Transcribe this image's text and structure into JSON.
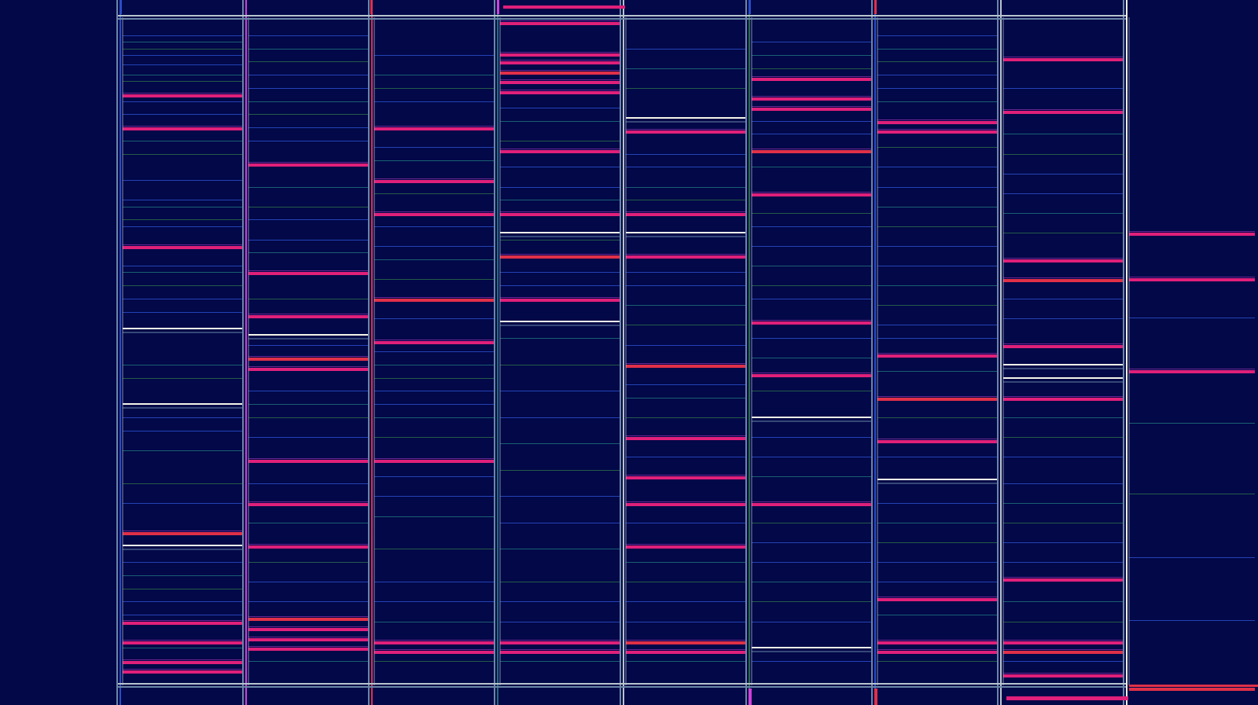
{
  "palette": {
    "background": "#020848",
    "frame": "#b8c4cc",
    "frame_dim": "#6b86a8",
    "accent_pink": "#e0207a",
    "accent_red": "#e03048",
    "accent_magenta": "#d040d8",
    "highlight_white": "#f4f4e8",
    "trace_blue": "#2a4cc8",
    "trace_teal": "#1f6e7a",
    "trace_green": "#2c6a4a"
  },
  "columns": [
    {
      "id": "col-1",
      "pink": [
        0.11,
        0.16,
        0.34,
        0.775,
        0.91,
        0.94,
        0.97,
        0.985
      ],
      "white": [
        0.465,
        0.58,
        0.795
      ],
      "thin": [
        0.02,
        0.03,
        0.04,
        0.05,
        0.065,
        0.08,
        0.09,
        0.12,
        0.14,
        0.18,
        0.2,
        0.24,
        0.27,
        0.28,
        0.3,
        0.31,
        0.37,
        0.38,
        0.4,
        0.42,
        0.44,
        0.52,
        0.54,
        0.6,
        0.62,
        0.65,
        0.7,
        0.73,
        0.82,
        0.84,
        0.86,
        0.88,
        0.9,
        0.95
      ]
    },
    {
      "id": "col-2",
      "pink": [
        0.215,
        0.38,
        0.445,
        0.51,
        0.525,
        0.665,
        0.73,
        0.795,
        0.905,
        0.92,
        0.935,
        0.95
      ],
      "white": [
        0.475
      ],
      "thin": [
        0.02,
        0.04,
        0.06,
        0.08,
        0.1,
        0.12,
        0.14,
        0.16,
        0.18,
        0.25,
        0.28,
        0.3,
        0.33,
        0.35,
        0.42,
        0.49,
        0.56,
        0.58,
        0.6,
        0.63,
        0.7,
        0.76,
        0.82,
        0.85,
        0.88,
        0.97
      ]
    },
    {
      "id": "col-3",
      "pink": [
        0.16,
        0.24,
        0.29,
        0.42,
        0.485,
        0.665,
        0.94,
        0.955
      ],
      "white": [],
      "thin": [
        0.05,
        0.08,
        0.1,
        0.12,
        0.19,
        0.21,
        0.26,
        0.31,
        0.34,
        0.36,
        0.39,
        0.45,
        0.5,
        0.52,
        0.54,
        0.56,
        0.58,
        0.6,
        0.63,
        0.69,
        0.72,
        0.75,
        0.8,
        0.85,
        0.88,
        0.91,
        0.97
      ]
    },
    {
      "id": "col-4",
      "pink": [
        0.0,
        0.048,
        0.06,
        0.075,
        0.09,
        0.105,
        0.195,
        0.29,
        0.355,
        0.42,
        0.94,
        0.955
      ],
      "white": [
        0.32,
        0.455
      ],
      "thin": [
        0.13,
        0.15,
        0.18,
        0.22,
        0.25,
        0.27,
        0.33,
        0.38,
        0.4,
        0.48,
        0.52,
        0.56,
        0.6,
        0.64,
        0.68,
        0.72,
        0.76,
        0.8,
        0.85,
        0.88,
        0.91,
        0.97
      ]
    },
    {
      "id": "col-5",
      "pink": [
        0.165,
        0.29,
        0.355,
        0.52,
        0.63,
        0.69,
        0.73,
        0.795,
        0.94,
        0.955
      ],
      "white": [
        0.145,
        0.32
      ],
      "thin": [
        0.04,
        0.07,
        0.1,
        0.2,
        0.22,
        0.25,
        0.27,
        0.38,
        0.4,
        0.43,
        0.46,
        0.49,
        0.55,
        0.57,
        0.6,
        0.66,
        0.76,
        0.82,
        0.85,
        0.88,
        0.91,
        0.97
      ]
    },
    {
      "id": "col-6",
      "pink": [
        0.085,
        0.115,
        0.13,
        0.195,
        0.26,
        0.455,
        0.535,
        0.73
      ],
      "white": [
        0.6,
        0.95
      ],
      "thin": [
        0.03,
        0.05,
        0.07,
        0.15,
        0.17,
        0.22,
        0.29,
        0.31,
        0.34,
        0.37,
        0.4,
        0.42,
        0.48,
        0.51,
        0.56,
        0.63,
        0.66,
        0.69,
        0.76,
        0.79,
        0.82,
        0.85,
        0.88,
        0.91,
        0.97
      ]
    },
    {
      "id": "col-7",
      "pink": [
        0.15,
        0.165,
        0.505,
        0.57,
        0.635,
        0.875,
        0.94,
        0.955
      ],
      "white": [
        0.695
      ],
      "thin": [
        0.02,
        0.04,
        0.06,
        0.08,
        0.1,
        0.12,
        0.19,
        0.22,
        0.25,
        0.28,
        0.31,
        0.34,
        0.37,
        0.4,
        0.43,
        0.46,
        0.48,
        0.53,
        0.6,
        0.66,
        0.73,
        0.76,
        0.79,
        0.82,
        0.85,
        0.9,
        0.97
      ]
    },
    {
      "id": "col-8",
      "pink": [
        0.055,
        0.135,
        0.36,
        0.39,
        0.49,
        0.57,
        0.845,
        0.94,
        0.955,
        0.99
      ],
      "white": [
        0.52,
        0.54
      ],
      "thin": [
        0.1,
        0.17,
        0.2,
        0.23,
        0.26,
        0.29,
        0.32,
        0.42,
        0.45,
        0.6,
        0.63,
        0.66,
        0.7,
        0.73,
        0.76,
        0.79,
        0.82,
        0.88,
        0.91,
        0.97
      ]
    },
    {
      "id": "col-9",
      "pink": [
        0.33,
        0.395,
        0.525,
        0.975
      ],
      "white": [],
      "thin": [
        0.45,
        0.6,
        0.7,
        0.79,
        0.88
      ]
    }
  ]
}
